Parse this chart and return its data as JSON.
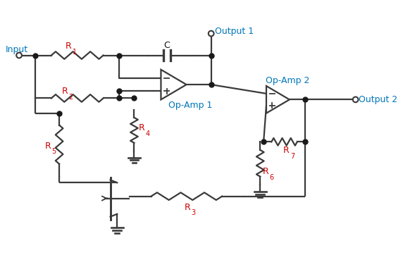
{
  "bg_color": "#ffffff",
  "wire_color": "#3a3a3a",
  "wire_lw": 1.6,
  "dot_color": "#1a1a1a",
  "dot_size": 5,
  "red_color": "#cc0000",
  "blue_color": "#0077bb",
  "label_fontsize": 9,
  "sub_fontsize": 7,
  "input_label": "Input",
  "output1_label": "Output 1",
  "output2_label": "Output 2",
  "opamp1_label": "Op-Amp 1",
  "opamp2_label": "Op-Amp 2",
  "C_label": "C"
}
